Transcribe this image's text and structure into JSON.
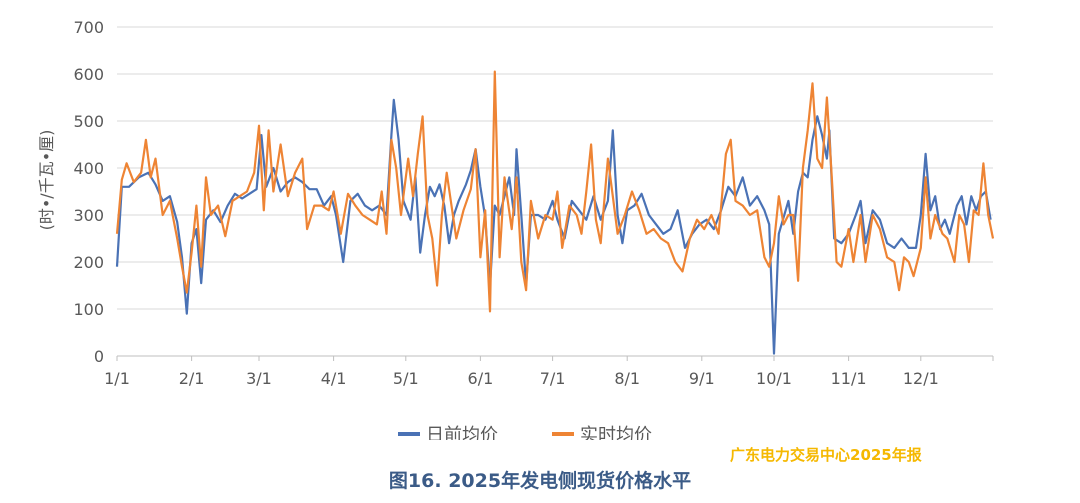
{
  "chart_data": {
    "type": "line",
    "title": "",
    "ylabel": "(时•/千瓦•厘)",
    "ylim": [
      0,
      700
    ],
    "yticks": [
      0,
      100,
      200,
      300,
      400,
      500,
      600,
      700
    ],
    "xlim": [
      1,
      365
    ],
    "xticks": [
      {
        "day": 1,
        "label": "1/1"
      },
      {
        "day": 32,
        "label": "2/1"
      },
      {
        "day": 60,
        "label": "3/1"
      },
      {
        "day": 91,
        "label": "4/1"
      },
      {
        "day": 121,
        "label": "5/1"
      },
      {
        "day": 152,
        "label": "6/1"
      },
      {
        "day": 182,
        "label": "7/1"
      },
      {
        "day": 213,
        "label": "8/1"
      },
      {
        "day": 244,
        "label": "9/1"
      },
      {
        "day": 274,
        "label": "10/1"
      },
      {
        "day": 305,
        "label": "11/1"
      },
      {
        "day": 335,
        "label": "12/1"
      }
    ],
    "grid": true,
    "legend_position": "bottom",
    "series": [
      {
        "name": "日前均价",
        "color": "#4a72b5",
        "points": [
          [
            1,
            190
          ],
          [
            3,
            360
          ],
          [
            6,
            360
          ],
          [
            10,
            380
          ],
          [
            14,
            390
          ],
          [
            17,
            365
          ],
          [
            20,
            330
          ],
          [
            23,
            340
          ],
          [
            26,
            285
          ],
          [
            28,
            210
          ],
          [
            30,
            90
          ],
          [
            32,
            240
          ],
          [
            34,
            270
          ],
          [
            36,
            155
          ],
          [
            38,
            290
          ],
          [
            41,
            310
          ],
          [
            44,
            285
          ],
          [
            47,
            320
          ],
          [
            50,
            345
          ],
          [
            53,
            335
          ],
          [
            56,
            345
          ],
          [
            59,
            355
          ],
          [
            61,
            470
          ],
          [
            63,
            360
          ],
          [
            66,
            400
          ],
          [
            69,
            350
          ],
          [
            72,
            370
          ],
          [
            75,
            380
          ],
          [
            78,
            370
          ],
          [
            81,
            355
          ],
          [
            84,
            355
          ],
          [
            87,
            320
          ],
          [
            90,
            340
          ],
          [
            92,
            300
          ],
          [
            95,
            200
          ],
          [
            98,
            330
          ],
          [
            101,
            345
          ],
          [
            104,
            320
          ],
          [
            107,
            310
          ],
          [
            110,
            320
          ],
          [
            113,
            300
          ],
          [
            115,
            470
          ],
          [
            116,
            545
          ],
          [
            118,
            460
          ],
          [
            120,
            330
          ],
          [
            123,
            290
          ],
          [
            125,
            380
          ],
          [
            127,
            220
          ],
          [
            129,
            300
          ],
          [
            131,
            360
          ],
          [
            133,
            340
          ],
          [
            135,
            365
          ],
          [
            137,
            320
          ],
          [
            139,
            240
          ],
          [
            141,
            300
          ],
          [
            143,
            330
          ],
          [
            146,
            365
          ],
          [
            148,
            395
          ],
          [
            150,
            440
          ],
          [
            152,
            360
          ],
          [
            154,
            295
          ],
          [
            156,
            150
          ],
          [
            158,
            320
          ],
          [
            160,
            300
          ],
          [
            162,
            340
          ],
          [
            164,
            380
          ],
          [
            166,
            300
          ],
          [
            167,
            440
          ],
          [
            169,
            300
          ],
          [
            171,
            150
          ],
          [
            173,
            300
          ],
          [
            176,
            300
          ],
          [
            179,
            290
          ],
          [
            182,
            330
          ],
          [
            184,
            290
          ],
          [
            187,
            250
          ],
          [
            190,
            330
          ],
          [
            193,
            310
          ],
          [
            196,
            290
          ],
          [
            199,
            340
          ],
          [
            202,
            290
          ],
          [
            205,
            330
          ],
          [
            207,
            480
          ],
          [
            209,
            300
          ],
          [
            211,
            240
          ],
          [
            213,
            310
          ],
          [
            216,
            320
          ],
          [
            219,
            345
          ],
          [
            222,
            300
          ],
          [
            225,
            280
          ],
          [
            228,
            260
          ],
          [
            231,
            270
          ],
          [
            234,
            310
          ],
          [
            237,
            230
          ],
          [
            240,
            260
          ],
          [
            243,
            280
          ],
          [
            246,
            290
          ],
          [
            249,
            270
          ],
          [
            252,
            310
          ],
          [
            255,
            360
          ],
          [
            258,
            340
          ],
          [
            261,
            380
          ],
          [
            264,
            320
          ],
          [
            267,
            340
          ],
          [
            270,
            310
          ],
          [
            272,
            280
          ],
          [
            274,
            5
          ],
          [
            276,
            260
          ],
          [
            278,
            295
          ],
          [
            280,
            330
          ],
          [
            282,
            260
          ],
          [
            284,
            350
          ],
          [
            286,
            390
          ],
          [
            288,
            380
          ],
          [
            290,
            460
          ],
          [
            292,
            510
          ],
          [
            294,
            470
          ],
          [
            296,
            420
          ],
          [
            297,
            480
          ],
          [
            299,
            250
          ],
          [
            302,
            240
          ],
          [
            305,
            260
          ],
          [
            308,
            300
          ],
          [
            310,
            330
          ],
          [
            312,
            240
          ],
          [
            315,
            310
          ],
          [
            318,
            290
          ],
          [
            321,
            240
          ],
          [
            324,
            230
          ],
          [
            327,
            250
          ],
          [
            330,
            230
          ],
          [
            333,
            230
          ],
          [
            335,
            300
          ],
          [
            337,
            430
          ],
          [
            339,
            310
          ],
          [
            341,
            340
          ],
          [
            343,
            270
          ],
          [
            345,
            290
          ],
          [
            347,
            260
          ],
          [
            350,
            320
          ],
          [
            352,
            340
          ],
          [
            354,
            280
          ],
          [
            356,
            340
          ],
          [
            358,
            310
          ],
          [
            360,
            340
          ],
          [
            362,
            350
          ],
          [
            364,
            290
          ]
        ]
      },
      {
        "name": "实时均价",
        "color": "#ee8434",
        "points": [
          [
            1,
            260
          ],
          [
            3,
            375
          ],
          [
            5,
            410
          ],
          [
            8,
            370
          ],
          [
            11,
            390
          ],
          [
            13,
            460
          ],
          [
            15,
            380
          ],
          [
            17,
            420
          ],
          [
            20,
            300
          ],
          [
            23,
            330
          ],
          [
            26,
            250
          ],
          [
            28,
            190
          ],
          [
            30,
            135
          ],
          [
            32,
            220
          ],
          [
            34,
            320
          ],
          [
            36,
            190
          ],
          [
            38,
            380
          ],
          [
            40,
            300
          ],
          [
            43,
            320
          ],
          [
            46,
            255
          ],
          [
            49,
            330
          ],
          [
            52,
            340
          ],
          [
            55,
            350
          ],
          [
            58,
            390
          ],
          [
            60,
            490
          ],
          [
            62,
            310
          ],
          [
            64,
            480
          ],
          [
            66,
            350
          ],
          [
            69,
            450
          ],
          [
            72,
            340
          ],
          [
            75,
            390
          ],
          [
            78,
            420
          ],
          [
            80,
            270
          ],
          [
            83,
            320
          ],
          [
            86,
            320
          ],
          [
            89,
            310
          ],
          [
            91,
            350
          ],
          [
            94,
            260
          ],
          [
            97,
            345
          ],
          [
            100,
            320
          ],
          [
            103,
            300
          ],
          [
            106,
            290
          ],
          [
            109,
            280
          ],
          [
            111,
            350
          ],
          [
            113,
            260
          ],
          [
            115,
            460
          ],
          [
            117,
            400
          ],
          [
            119,
            300
          ],
          [
            122,
            420
          ],
          [
            124,
            340
          ],
          [
            126,
            430
          ],
          [
            128,
            510
          ],
          [
            130,
            300
          ],
          [
            132,
            250
          ],
          [
            134,
            150
          ],
          [
            136,
            300
          ],
          [
            138,
            390
          ],
          [
            140,
            320
          ],
          [
            142,
            250
          ],
          [
            145,
            310
          ],
          [
            148,
            355
          ],
          [
            150,
            440
          ],
          [
            152,
            210
          ],
          [
            154,
            310
          ],
          [
            156,
            95
          ],
          [
            158,
            605
          ],
          [
            160,
            210
          ],
          [
            162,
            380
          ],
          [
            165,
            270
          ],
          [
            167,
            380
          ],
          [
            169,
            200
          ],
          [
            171,
            140
          ],
          [
            173,
            330
          ],
          [
            176,
            250
          ],
          [
            179,
            300
          ],
          [
            182,
            290
          ],
          [
            184,
            350
          ],
          [
            186,
            230
          ],
          [
            189,
            320
          ],
          [
            192,
            300
          ],
          [
            194,
            260
          ],
          [
            196,
            350
          ],
          [
            198,
            450
          ],
          [
            200,
            290
          ],
          [
            202,
            240
          ],
          [
            205,
            420
          ],
          [
            207,
            340
          ],
          [
            209,
            260
          ],
          [
            212,
            300
          ],
          [
            215,
            350
          ],
          [
            218,
            310
          ],
          [
            221,
            260
          ],
          [
            224,
            270
          ],
          [
            227,
            250
          ],
          [
            230,
            240
          ],
          [
            233,
            200
          ],
          [
            236,
            180
          ],
          [
            239,
            250
          ],
          [
            242,
            290
          ],
          [
            245,
            270
          ],
          [
            248,
            300
          ],
          [
            251,
            260
          ],
          [
            254,
            430
          ],
          [
            256,
            460
          ],
          [
            258,
            330
          ],
          [
            261,
            320
          ],
          [
            264,
            300
          ],
          [
            267,
            310
          ],
          [
            270,
            210
          ],
          [
            272,
            190
          ],
          [
            274,
            240
          ],
          [
            276,
            340
          ],
          [
            278,
            280
          ],
          [
            280,
            300
          ],
          [
            282,
            300
          ],
          [
            284,
            160
          ],
          [
            286,
            400
          ],
          [
            288,
            480
          ],
          [
            290,
            580
          ],
          [
            292,
            420
          ],
          [
            294,
            400
          ],
          [
            296,
            550
          ],
          [
            298,
            380
          ],
          [
            300,
            200
          ],
          [
            302,
            190
          ],
          [
            305,
            270
          ],
          [
            307,
            200
          ],
          [
            310,
            300
          ],
          [
            312,
            200
          ],
          [
            315,
            300
          ],
          [
            318,
            270
          ],
          [
            321,
            210
          ],
          [
            324,
            200
          ],
          [
            326,
            140
          ],
          [
            328,
            210
          ],
          [
            330,
            200
          ],
          [
            332,
            170
          ],
          [
            335,
            230
          ],
          [
            337,
            380
          ],
          [
            339,
            250
          ],
          [
            341,
            300
          ],
          [
            344,
            260
          ],
          [
            346,
            250
          ],
          [
            349,
            200
          ],
          [
            351,
            300
          ],
          [
            353,
            280
          ],
          [
            355,
            200
          ],
          [
            357,
            310
          ],
          [
            359,
            300
          ],
          [
            361,
            410
          ],
          [
            363,
            300
          ],
          [
            365,
            250
          ]
        ]
      }
    ]
  },
  "caption": "图16. 2025年发电侧现货价格水平",
  "watermark": "广东电力交易中心2025年报"
}
